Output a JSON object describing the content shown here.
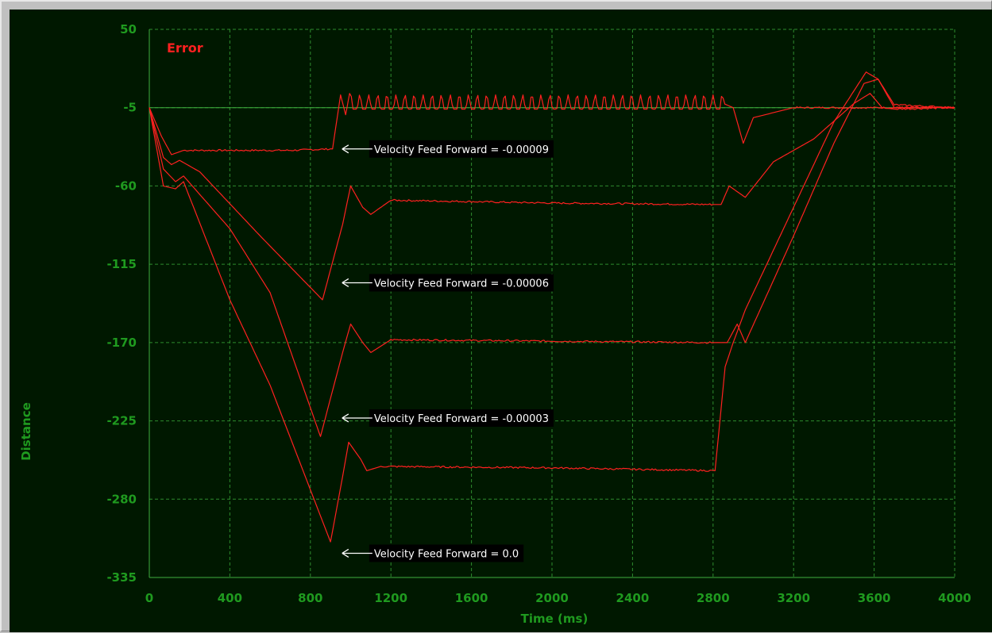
{
  "chart_data": {
    "type": "line",
    "title": "Error",
    "xlabel": "Time (ms)",
    "ylabel": "Distance",
    "xlim": [
      0,
      4000
    ],
    "ylim": [
      -335,
      50
    ],
    "xticks": [
      "0",
      "400",
      "800",
      "1200",
      "1600",
      "2000",
      "2400",
      "2800",
      "3200",
      "3600",
      "4000"
    ],
    "yticks": [
      "50",
      "-5",
      "-60",
      "-115",
      "-170",
      "-225",
      "-280",
      "-335"
    ],
    "grid": true,
    "colors": {
      "background": "#001800",
      "series": "#ff2020",
      "grid": "#2e8b2e",
      "tick_text": "#1f9a1f",
      "annotation_bg": "#000000",
      "annotation_text": "#ffffff"
    },
    "series": [
      {
        "points": [
          [
            0,
            -5
          ],
          [
            60,
            -25
          ],
          [
            110,
            -38
          ],
          [
            170,
            -35
          ],
          [
            400,
            -35
          ],
          [
            700,
            -35
          ],
          [
            910,
            -34
          ],
          [
            950,
            4
          ],
          [
            975,
            -10
          ],
          [
            995,
            5
          ],
          [
            1020,
            -10
          ],
          [
            1200,
            -5
          ],
          [
            2000,
            -5
          ],
          [
            2800,
            -5
          ],
          [
            2850,
            -2
          ],
          [
            2900,
            -5
          ],
          [
            2950,
            -30
          ],
          [
            3000,
            -12
          ],
          [
            3200,
            -5
          ],
          [
            3600,
            -5
          ],
          [
            3800,
            -5
          ],
          [
            4000,
            -5
          ]
        ],
        "oscillation": {
          "from": 1000,
          "to": 2850,
          "period": 45,
          "amplitude": 10,
          "center": -5
        }
      },
      {
        "points": [
          [
            0,
            -5
          ],
          [
            70,
            -40
          ],
          [
            110,
            -45
          ],
          [
            150,
            -42
          ],
          [
            250,
            -50
          ],
          [
            550,
            -95
          ],
          [
            860,
            -140
          ],
          [
            960,
            -87
          ],
          [
            1000,
            -60
          ],
          [
            1060,
            -75
          ],
          [
            1100,
            -80
          ],
          [
            1200,
            -70
          ],
          [
            2000,
            -72
          ],
          [
            2800,
            -73
          ],
          [
            2840,
            -73
          ],
          [
            2880,
            -60
          ],
          [
            2960,
            -68
          ],
          [
            3100,
            -43
          ],
          [
            3300,
            -27
          ],
          [
            3500,
            -2
          ],
          [
            3580,
            5
          ],
          [
            3640,
            -5
          ],
          [
            3700,
            -6
          ],
          [
            4000,
            -5
          ]
        ]
      },
      {
        "points": [
          [
            0,
            -5
          ],
          [
            70,
            -48
          ],
          [
            130,
            -57
          ],
          [
            170,
            -53
          ],
          [
            400,
            -90
          ],
          [
            600,
            -135
          ],
          [
            850,
            -236
          ],
          [
            960,
            -177
          ],
          [
            1000,
            -157
          ],
          [
            1060,
            -170
          ],
          [
            1100,
            -177
          ],
          [
            1200,
            -168
          ],
          [
            2000,
            -169
          ],
          [
            2800,
            -170
          ],
          [
            2870,
            -170
          ],
          [
            2920,
            -157
          ],
          [
            2960,
            -170
          ],
          [
            3200,
            -95
          ],
          [
            3400,
            -30
          ],
          [
            3550,
            12
          ],
          [
            3620,
            15
          ],
          [
            3700,
            -5
          ],
          [
            4000,
            -5
          ]
        ]
      },
      {
        "points": [
          [
            0,
            -5
          ],
          [
            70,
            -60
          ],
          [
            130,
            -62
          ],
          [
            170,
            -57
          ],
          [
            400,
            -140
          ],
          [
            600,
            -200
          ],
          [
            900,
            -310
          ],
          [
            960,
            -264
          ],
          [
            990,
            -240
          ],
          [
            1050,
            -252
          ],
          [
            1080,
            -260
          ],
          [
            1150,
            -257
          ],
          [
            2000,
            -258
          ],
          [
            2810,
            -260
          ],
          [
            2860,
            -187
          ],
          [
            2900,
            -170
          ],
          [
            2960,
            -147
          ],
          [
            3200,
            -75
          ],
          [
            3400,
            -15
          ],
          [
            3560,
            20
          ],
          [
            3620,
            15
          ],
          [
            3700,
            -3
          ],
          [
            4000,
            -5
          ]
        ]
      }
    ],
    "annotations": [
      {
        "text": "Velocity Feed Forward = -0.00009",
        "x": 950,
        "y": -34
      },
      {
        "text": "Velocity Feed Forward = -0.00006",
        "x": 950,
        "y": -128
      },
      {
        "text": "Velocity Feed Forward = -0.00003",
        "x": 950,
        "y": -223
      },
      {
        "text": "Velocity Feed Forward = 0.0",
        "x": 950,
        "y": -318
      }
    ]
  }
}
